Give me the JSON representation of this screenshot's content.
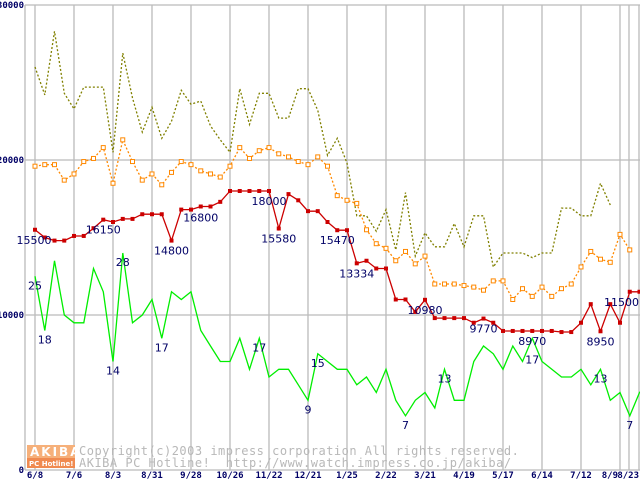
{
  "chart_data": {
    "type": "line",
    "title": "",
    "xlabel": "",
    "ylabel": "",
    "ylim": [
      0,
      30000
    ],
    "y_ticks": [
      "0",
      "10000",
      "20000",
      "30000"
    ],
    "y_tick_values": [
      0,
      10000,
      20000,
      30000
    ],
    "grid": true,
    "x_tick_labels": [
      "6/8",
      "7/6",
      "8/3",
      "8/31",
      "9/28",
      "10/26",
      "11/22",
      "12/21",
      "1/25",
      "2/22",
      "3/21",
      "4/19",
      "5/17",
      "6/14",
      "7/12",
      "8/9",
      "8/23"
    ],
    "series": [
      {
        "name": "high",
        "color": "#808000",
        "style": "dotted",
        "values": [
          26000,
          24200,
          28300,
          24300,
          23300,
          24700,
          24700,
          24700,
          20500,
          26900,
          24000,
          21800,
          23400,
          21400,
          22500,
          24500,
          23600,
          23800,
          22200,
          21300,
          20500,
          24600,
          22300,
          24300,
          24300,
          22700,
          22700,
          24600,
          24600,
          23200,
          20300,
          21400,
          19800,
          16400,
          16400,
          15400,
          16800,
          14200,
          17900,
          13800,
          15300,
          14400,
          14400,
          15900,
          14400,
          16400,
          16400,
          13100,
          14000,
          14000,
          14000,
          13700,
          14000,
          14000,
          16900,
          16900,
          16400,
          16400,
          18500,
          17100
        ]
      },
      {
        "name": "average",
        "color": "#ff8800",
        "style": "dotted-square",
        "values": [
          19600,
          19700,
          19700,
          18700,
          19100,
          19900,
          20100,
          20800,
          18500,
          21300,
          19900,
          18700,
          19100,
          18400,
          19200,
          19900,
          19700,
          19300,
          19100,
          18900,
          19600,
          20800,
          20100,
          20600,
          20800,
          20400,
          20200,
          19900,
          19700,
          20200,
          19600,
          17700,
          17400,
          17200,
          15500,
          14600,
          14300,
          13500,
          14100,
          13300,
          13800,
          12000,
          12000,
          12000,
          11900,
          11800,
          11600,
          12200,
          12200,
          11000,
          11700,
          11200,
          11800,
          11200,
          11700,
          12000,
          13100,
          14100,
          13600,
          13400,
          15200,
          14200
        ]
      },
      {
        "name": "low",
        "color": "#cc0000",
        "style": "solid-square",
        "values": [
          15500,
          15000,
          14800,
          14800,
          15100,
          15100,
          15600,
          16150,
          16000,
          16200,
          16200,
          16500,
          16500,
          16500,
          14800,
          16800,
          16800,
          17000,
          17000,
          17300,
          18000,
          18000,
          18000,
          18000,
          18000,
          15580,
          17800,
          17400,
          16700,
          16700,
          16000,
          15470,
          15470,
          13334,
          13500,
          13000,
          13000,
          11000,
          11000,
          10200,
          10980,
          9800,
          9800,
          9800,
          9800,
          9500,
          9770,
          9500,
          8970,
          8970,
          8970,
          8970,
          8970,
          8970,
          8900,
          8900,
          9500,
          10700,
          8950,
          10700,
          9500,
          11500,
          11500
        ]
      },
      {
        "name": "shops",
        "color": "#00ee00",
        "style": "solid",
        "values": [
          25,
          18,
          27,
          20,
          19,
          19,
          26,
          23,
          14,
          28,
          19,
          20,
          22,
          17,
          23,
          22,
          23,
          18,
          16,
          14,
          14,
          17,
          13,
          17,
          12,
          13,
          13,
          11,
          9,
          15,
          14,
          13,
          13,
          11,
          12,
          10,
          13,
          9,
          7,
          9,
          10,
          8,
          13,
          9,
          9,
          14,
          16,
          15,
          13,
          16,
          14,
          17,
          14,
          13,
          12,
          12,
          13,
          11,
          13,
          9,
          10,
          7,
          10,
          11,
          8
        ]
      }
    ],
    "shops_scale": {
      "min": 0,
      "max": 60
    },
    "annotations": {
      "low": [
        {
          "index": 0,
          "text": "15500"
        },
        {
          "index": 7,
          "text": "16150"
        },
        {
          "index": 14,
          "text": "14800"
        },
        {
          "index": 15,
          "text": "16800"
        },
        {
          "index": 24,
          "text": "18000"
        },
        {
          "index": 25,
          "text": "15580"
        },
        {
          "index": 31,
          "text": "15470"
        },
        {
          "index": 33,
          "text": "13334"
        },
        {
          "index": 40,
          "text": "10980"
        },
        {
          "index": 46,
          "text": "9770"
        },
        {
          "index": 51,
          "text": "8970"
        },
        {
          "index": 58,
          "text": "8950"
        },
        {
          "index": 62,
          "text": "11500"
        }
      ],
      "shops": [
        {
          "index": 0,
          "text": "25"
        },
        {
          "index": 1,
          "text": "18"
        },
        {
          "index": 8,
          "text": "14"
        },
        {
          "index": 9,
          "text": "28"
        },
        {
          "index": 13,
          "text": "17"
        },
        {
          "index": 23,
          "text": "17"
        },
        {
          "index": 28,
          "text": "9"
        },
        {
          "index": 29,
          "text": "15"
        },
        {
          "index": 38,
          "text": "7"
        },
        {
          "index": 42,
          "text": "13"
        },
        {
          "index": 51,
          "text": "17"
        },
        {
          "index": 58,
          "text": "13"
        },
        {
          "index": 61,
          "text": "7"
        }
      ]
    }
  },
  "watermark": {
    "logo_top": "AKIBA",
    "logo_bottom": "PC Hotline!",
    "line1": "Copyright(c)2003 impress corporation All rights reserved.",
    "line2": "AKIBA PC Hotline!  http://www.watch.impress.co.jp/akiba/"
  }
}
